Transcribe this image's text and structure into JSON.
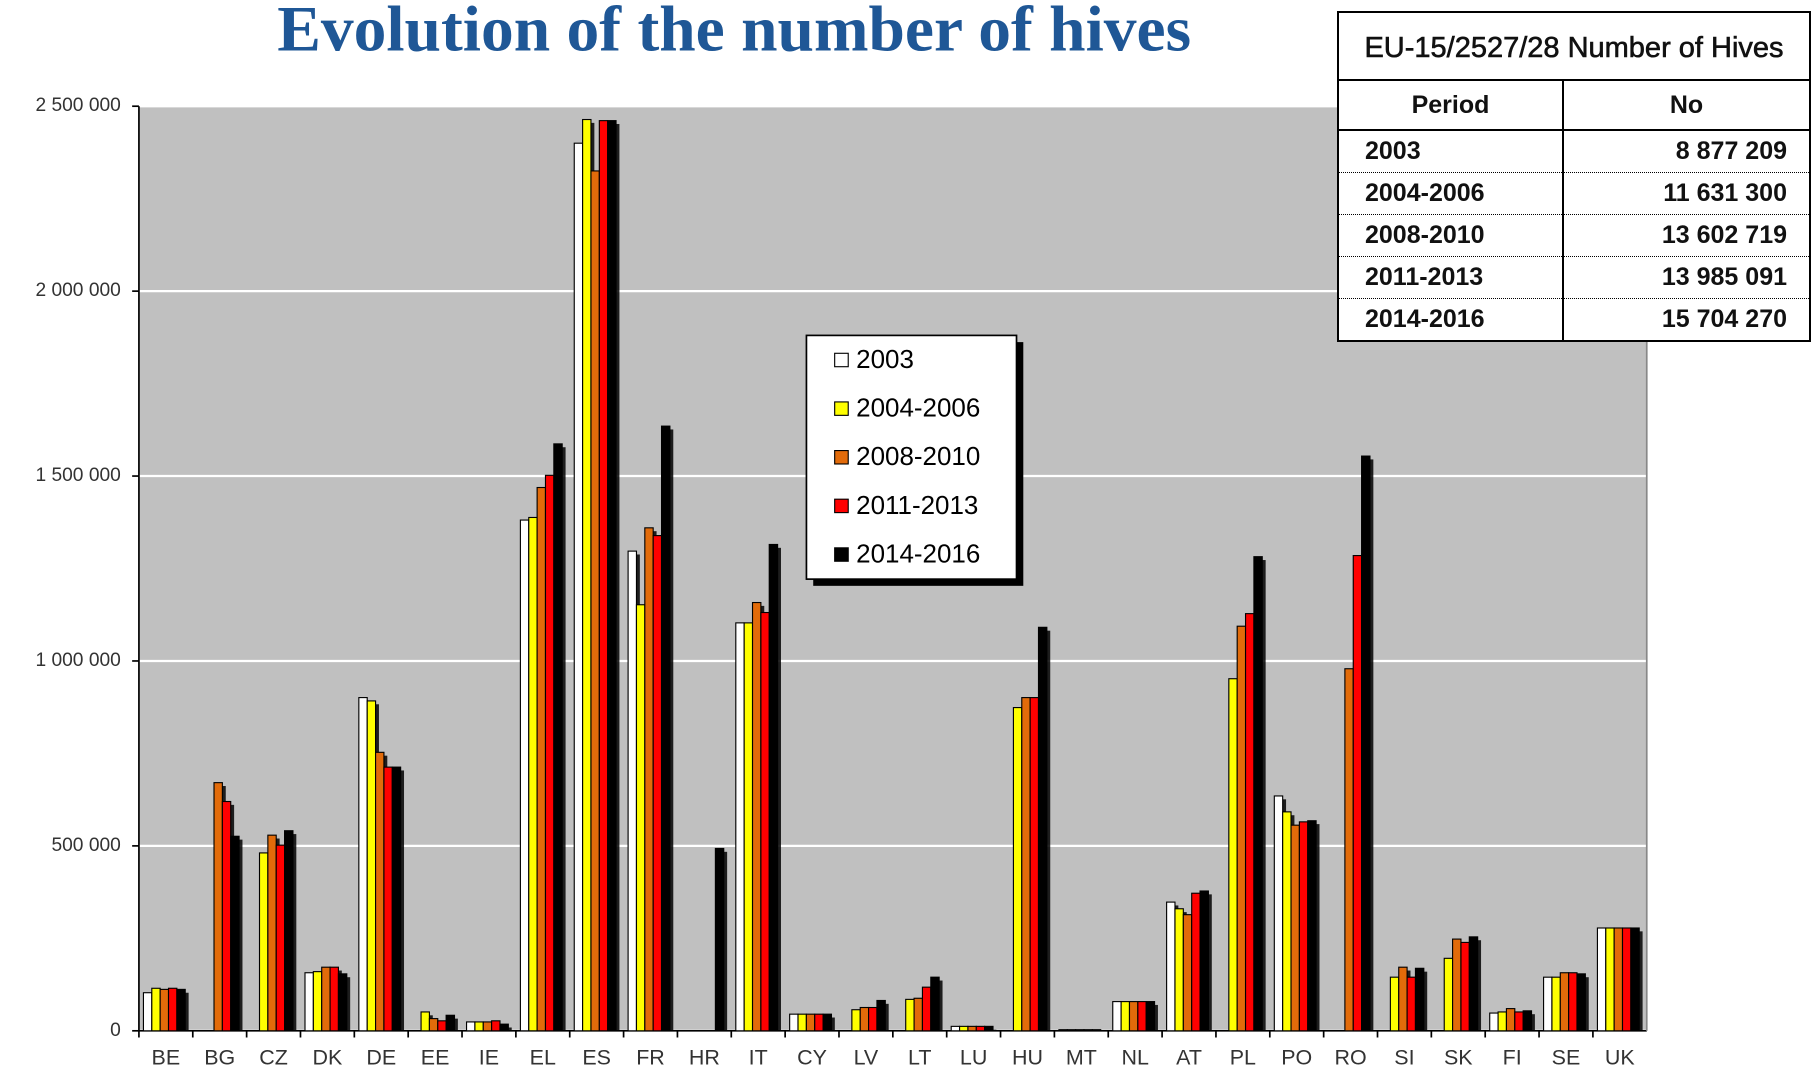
{
  "chart_data": {
    "type": "bar",
    "title": "Evolution of the number of hives",
    "categories": [
      "BE",
      "BG",
      "CZ",
      "DK",
      "DE",
      "EE",
      "IE",
      "EL",
      "ES",
      "FR",
      "HR",
      "IT",
      "CY",
      "LV",
      "LT",
      "LU",
      "HU",
      "MT",
      "NL",
      "AT",
      "PL",
      "PO",
      "RO",
      "SI",
      "SK",
      "FI",
      "SE",
      "UK"
    ],
    "series": [
      {
        "name": "2003",
        "color": "#ffffff",
        "values": [
          103000,
          null,
          null,
          157000,
          901000,
          null,
          24000,
          1381000,
          2400000,
          1297000,
          null,
          1103000,
          45000,
          null,
          null,
          12000,
          null,
          3000,
          79000,
          348000,
          null,
          635000,
          null,
          null,
          null,
          48000,
          145000,
          278000
        ]
      },
      {
        "name": "2004-2006",
        "color": "#ffff00",
        "values": [
          115000,
          null,
          481000,
          160000,
          892000,
          51000,
          24000,
          1388000,
          2464000,
          1152000,
          null,
          1103000,
          45000,
          57000,
          85000,
          12000,
          874000,
          3000,
          79000,
          330000,
          952000,
          592000,
          null,
          145000,
          196000,
          51000,
          145000,
          278000
        ]
      },
      {
        "name": "2008-2010",
        "color": "#e26b0a",
        "values": [
          112000,
          671000,
          529000,
          172000,
          753000,
          33000,
          24000,
          1469000,
          2325000,
          1360000,
          null,
          1158000,
          45000,
          63000,
          88000,
          12000,
          901000,
          3000,
          79000,
          314000,
          1094000,
          556000,
          979000,
          172000,
          248000,
          60000,
          157000,
          278000
        ]
      },
      {
        "name": "2011-2013",
        "color": "#ff0000",
        "values": [
          115000,
          620000,
          502000,
          172000,
          713000,
          27000,
          27000,
          1502000,
          2461000,
          1339000,
          null,
          1131000,
          45000,
          63000,
          118000,
          12000,
          901000,
          3000,
          79000,
          372000,
          1128000,
          565000,
          1285000,
          145000,
          239000,
          51000,
          157000,
          278000
        ]
      },
      {
        "name": "2014-2016",
        "color": "#000000",
        "values": [
          112000,
          526000,
          541000,
          154000,
          713000,
          42000,
          18000,
          1587000,
          2461000,
          1635000,
          493000,
          1315000,
          45000,
          82000,
          145000,
          12000,
          1091000,
          3000,
          79000,
          378000,
          1282000,
          568000,
          1554000,
          169000,
          254000,
          54000,
          154000,
          278000
        ]
      }
    ],
    "ylim": [
      0,
      2500000
    ],
    "yticks": [
      0,
      {
        "value": 500000,
        "label": "500 000"
      },
      {
        "value": 1000000,
        "label": "1 000 000"
      },
      {
        "value": 1500000,
        "label": "1 500 000"
      },
      {
        "value": 2000000,
        "label": "2 000 000"
      },
      {
        "value": 2500000,
        "label": "2 500 000"
      }
    ],
    "grid": true,
    "legend": "center"
  },
  "table": {
    "title": "EU-15/2527/28  Number of Hives",
    "header": [
      "Period",
      "No"
    ],
    "rows": [
      [
        "2003",
        "8 877 209"
      ],
      [
        "2004-2006",
        "11 631 300"
      ],
      [
        "2008-2010",
        "13 602 719"
      ],
      [
        "2011-2013",
        "13 985 091"
      ],
      [
        "2014-2016",
        "15 704 270"
      ]
    ]
  }
}
